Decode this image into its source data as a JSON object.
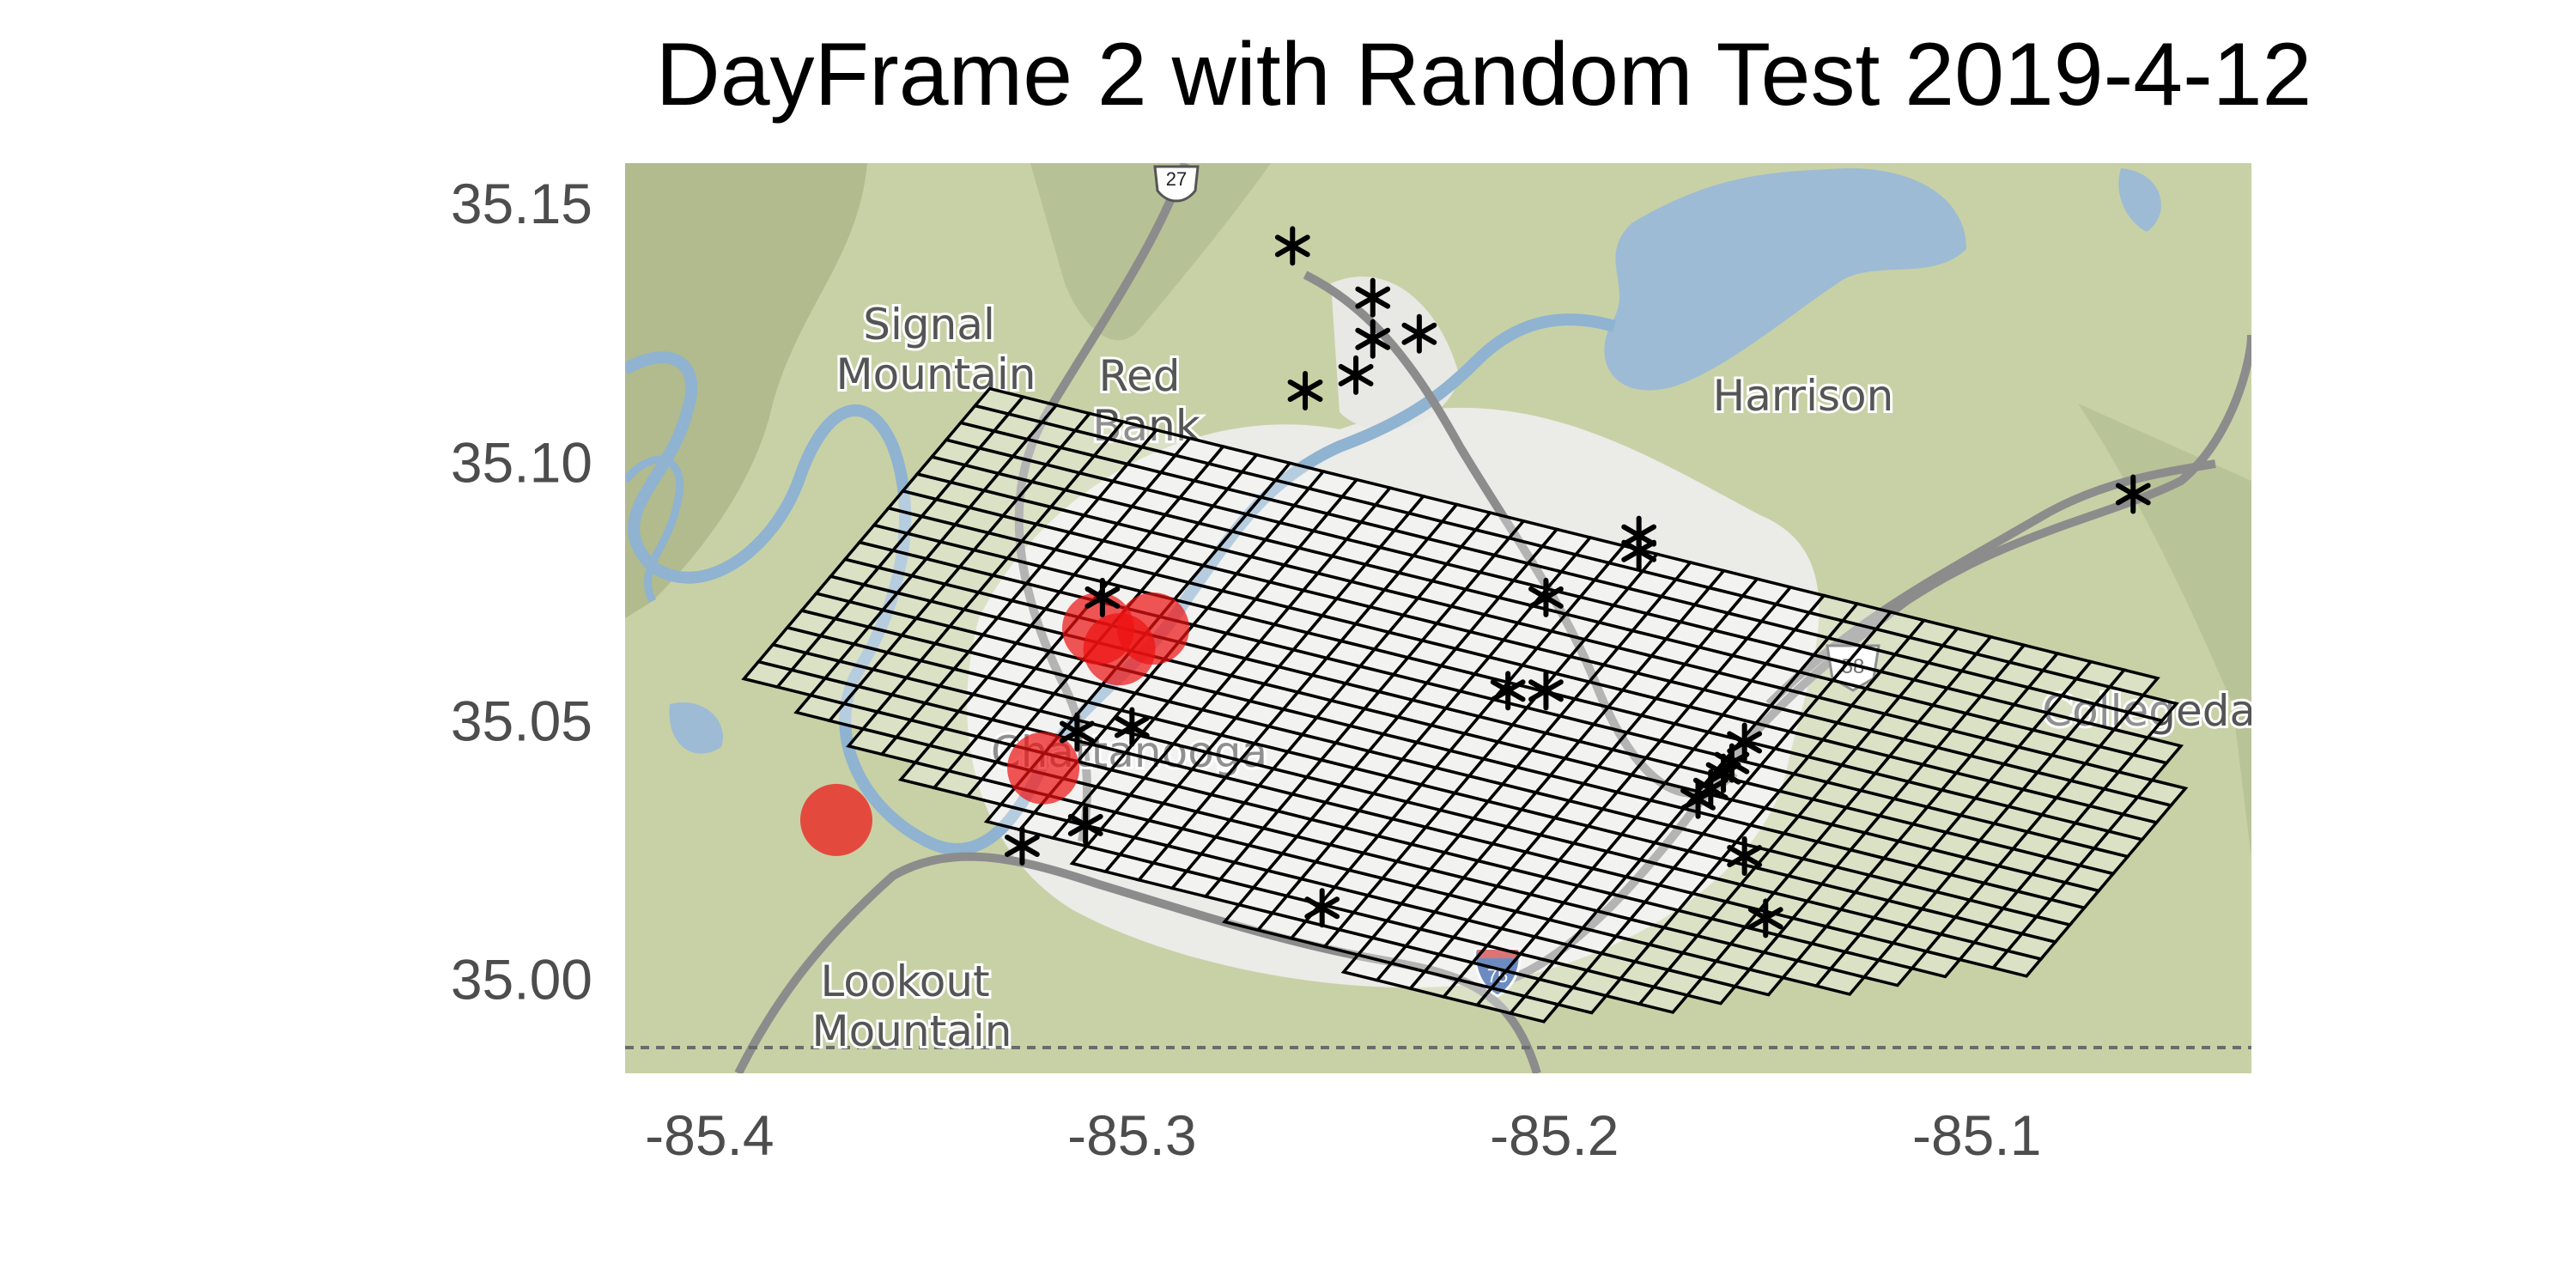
{
  "title": "DayFrame 2 with Random Test 2019-4-12",
  "axes": {
    "x": {
      "min": -85.42,
      "max": -85.035,
      "ticks": [
        -85.4,
        -85.3,
        -85.2,
        -85.1
      ],
      "tick_labels": [
        "-85.4",
        "-85.3",
        "-85.2",
        "-85.1"
      ]
    },
    "y": {
      "min": 34.982,
      "max": 35.158,
      "ticks": [
        35.0,
        35.05,
        35.1,
        35.15
      ],
      "tick_labels": [
        "35.00",
        "35.05",
        "35.10",
        "35.15"
      ]
    },
    "grid": false
  },
  "basemap": {
    "places": [
      "Signal\nMountain",
      "Red\nBank",
      "Harrison",
      "Chattanooga",
      "Collegedale",
      "Lookout\nMountain"
    ],
    "shields": [
      "27",
      "75",
      "58"
    ],
    "colors": {
      "land": "#c9d2a8",
      "urban": "#ececea",
      "water": "#9dbbd4",
      "road": "#8c8c8c"
    }
  },
  "chart_data": {
    "type": "scatter",
    "series": [
      {
        "marker": "asterisk",
        "color": "#000000",
        "points": [
          [
            -85.262,
            35.142
          ],
          [
            -85.243,
            35.132
          ],
          [
            -85.243,
            35.124
          ],
          [
            -85.232,
            35.125
          ],
          [
            -85.247,
            35.117
          ],
          [
            -85.259,
            35.114
          ],
          [
            -85.18,
            35.086
          ],
          [
            -85.18,
            35.083
          ],
          [
            -85.202,
            35.074
          ],
          [
            -85.307,
            35.074
          ],
          [
            -85.211,
            35.056
          ],
          [
            -85.202,
            35.056
          ],
          [
            -85.313,
            35.048
          ],
          [
            -85.3,
            35.049
          ],
          [
            -85.155,
            35.046
          ],
          [
            -85.158,
            35.042
          ],
          [
            -85.16,
            35.04
          ],
          [
            -85.163,
            35.037
          ],
          [
            -85.166,
            35.035
          ],
          [
            -85.155,
            35.024
          ],
          [
            -85.311,
            35.03
          ],
          [
            -85.326,
            35.026
          ],
          [
            -85.255,
            35.014
          ],
          [
            -85.15,
            35.012
          ],
          [
            -85.063,
            35.094
          ]
        ]
      },
      {
        "marker": "circle",
        "color": "#ee1111",
        "points": [
          [
            -85.308,
            35.068
          ],
          [
            -85.303,
            35.064
          ],
          [
            -85.295,
            35.068
          ],
          [
            -85.321,
            35.041
          ],
          [
            -85.37,
            35.031
          ]
        ]
      }
    ],
    "grid_overlay": {
      "rows": 24,
      "cols": 44,
      "origin": [
        -85.4,
        35.032
      ],
      "col_step": [
        0.0079,
        0.0006
      ],
      "row_step": [
        0.0057,
        0.0033
      ]
    }
  }
}
